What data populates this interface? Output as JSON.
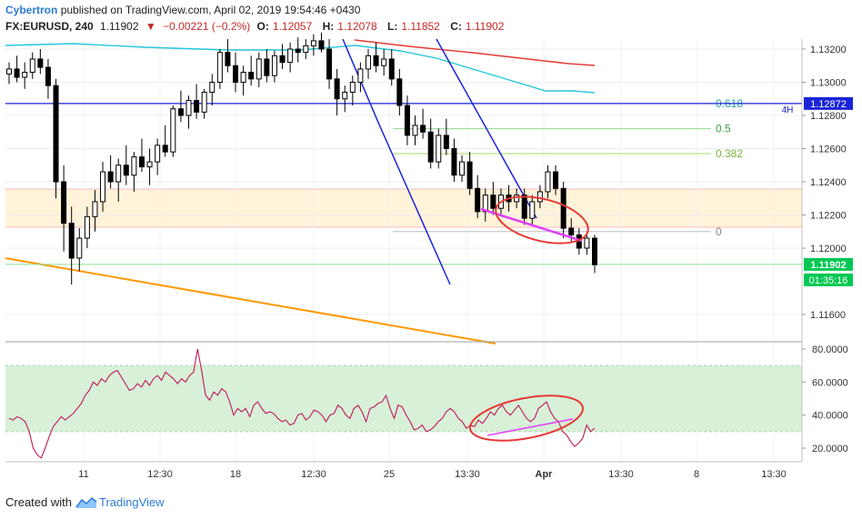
{
  "header": {
    "author": "Cybertron",
    "published_text": "published on TradingView.com, April 02, 2019 19:54:46 +0430",
    "symbol": "FX:EURUSD, 240",
    "last": "1.11902",
    "change_arrow": "▼",
    "change": "−0.00221 (−0.2%)",
    "o_label": "O:",
    "o_value": "1.12057",
    "h_label": "H:",
    "h_value": "1.12078",
    "l_label": "L:",
    "l_value": "1.11852",
    "c_label": "C:",
    "c_value": "1.11902"
  },
  "footer": {
    "created_with": "Created with",
    "brand": "TradingView"
  },
  "colors": {
    "bull": "#ffffff",
    "bear": "#000000",
    "ma_red": "#e53935",
    "ma_cyan": "#26c6da",
    "trend_blue": "#1a24d8",
    "orange": "#ff9800",
    "magenta": "#e040fb",
    "circle": "#e53935",
    "zone": "#fff3d9",
    "rsi": "#c2185b",
    "rsi_band": "#d7f0d7",
    "green_price": "#00c853"
  },
  "chart_data": {
    "type": "candlestick",
    "price_axis": {
      "min": 1.1145,
      "max": 1.1328,
      "ticks": [
        "1.13200",
        "1.13000",
        "1.12800",
        "1.12600",
        "1.12400",
        "1.12200",
        "1.12000",
        "1.11600"
      ]
    },
    "time_axis": {
      "ticks": [
        "11",
        "12:30",
        "18",
        "12:30",
        "25",
        "13:30",
        "Apr",
        "13:30",
        "8",
        "13:30"
      ]
    },
    "current_price_label": "1.11902",
    "countdown_label": "01:35:16",
    "blue_line_label": "1.12872",
    "timeframe_label": "4H",
    "fib_levels": [
      {
        "label": "0.618",
        "price": 1.12872
      },
      {
        "label": "0.5",
        "price": 1.1272
      },
      {
        "label": "0.382",
        "price": 1.1257
      },
      {
        "label": "0",
        "price": 1.121
      }
    ],
    "candles": [
      [
        1.1305,
        1.1312,
        1.1299,
        1.1308
      ],
      [
        1.1308,
        1.1316,
        1.13,
        1.1303
      ],
      [
        1.1303,
        1.1312,
        1.1296,
        1.1306
      ],
      [
        1.1306,
        1.1318,
        1.1302,
        1.1314
      ],
      [
        1.1314,
        1.132,
        1.1305,
        1.1309
      ],
      [
        1.1309,
        1.1314,
        1.129,
        1.1298
      ],
      [
        1.1298,
        1.1302,
        1.123,
        1.124
      ],
      [
        1.124,
        1.125,
        1.1198,
        1.1215
      ],
      [
        1.1215,
        1.1225,
        1.1178,
        1.1194
      ],
      [
        1.1194,
        1.1212,
        1.1186,
        1.1206
      ],
      [
        1.1206,
        1.1225,
        1.12,
        1.1219
      ],
      [
        1.1219,
        1.1235,
        1.121,
        1.1228
      ],
      [
        1.1228,
        1.1252,
        1.1222,
        1.1246
      ],
      [
        1.1246,
        1.1256,
        1.1236,
        1.124
      ],
      [
        1.124,
        1.1254,
        1.1228,
        1.125
      ],
      [
        1.125,
        1.1262,
        1.1238,
        1.1244
      ],
      [
        1.1244,
        1.1258,
        1.1234,
        1.1255
      ],
      [
        1.1255,
        1.1266,
        1.1246,
        1.1249
      ],
      [
        1.1249,
        1.126,
        1.1238,
        1.1252
      ],
      [
        1.1252,
        1.1266,
        1.1244,
        1.1262
      ],
      [
        1.1262,
        1.1274,
        1.1255,
        1.1258
      ],
      [
        1.1258,
        1.1286,
        1.1255,
        1.1284
      ],
      [
        1.1284,
        1.1295,
        1.1276,
        1.128
      ],
      [
        1.128,
        1.1292,
        1.1272,
        1.1289
      ],
      [
        1.1289,
        1.1299,
        1.1278,
        1.1282
      ],
      [
        1.1282,
        1.1296,
        1.1278,
        1.1294
      ],
      [
        1.1294,
        1.1305,
        1.1286,
        1.13
      ],
      [
        1.13,
        1.132,
        1.1296,
        1.1318
      ],
      [
        1.1318,
        1.1326,
        1.1306,
        1.131
      ],
      [
        1.131,
        1.1318,
        1.1294,
        1.13
      ],
      [
        1.13,
        1.131,
        1.1292,
        1.1306
      ],
      [
        1.1306,
        1.1316,
        1.1298,
        1.1302
      ],
      [
        1.1302,
        1.1318,
        1.1297,
        1.1314
      ],
      [
        1.1314,
        1.132,
        1.13,
        1.1304
      ],
      [
        1.1304,
        1.1319,
        1.13,
        1.1316
      ],
      [
        1.1316,
        1.1323,
        1.1308,
        1.1312
      ],
      [
        1.1312,
        1.1324,
        1.1306,
        1.132
      ],
      [
        1.132,
        1.1327,
        1.1312,
        1.1318
      ],
      [
        1.1318,
        1.1326,
        1.1314,
        1.1322
      ],
      [
        1.1322,
        1.1329,
        1.1316,
        1.1325
      ],
      [
        1.1325,
        1.133,
        1.1318,
        1.132
      ],
      [
        1.132,
        1.1326,
        1.1296,
        1.1302
      ],
      [
        1.1302,
        1.1308,
        1.128,
        1.129
      ],
      [
        1.129,
        1.1298,
        1.1282,
        1.1294
      ],
      [
        1.1294,
        1.1304,
        1.1286,
        1.13
      ],
      [
        1.13,
        1.1312,
        1.1294,
        1.1308
      ],
      [
        1.1308,
        1.132,
        1.1302,
        1.1316
      ],
      [
        1.1316,
        1.1324,
        1.1306,
        1.131
      ],
      [
        1.131,
        1.132,
        1.1304,
        1.1314
      ],
      [
        1.1314,
        1.132,
        1.1298,
        1.1302
      ],
      [
        1.1302,
        1.1308,
        1.128,
        1.1286
      ],
      [
        1.1286,
        1.1292,
        1.1262,
        1.1268
      ],
      [
        1.1268,
        1.128,
        1.1262,
        1.1274
      ],
      [
        1.1274,
        1.1284,
        1.1266,
        1.127
      ],
      [
        1.127,
        1.1278,
        1.1248,
        1.1252
      ],
      [
        1.1252,
        1.1272,
        1.1248,
        1.1268
      ],
      [
        1.1268,
        1.1278,
        1.1256,
        1.126
      ],
      [
        1.126,
        1.1266,
        1.124,
        1.1244
      ],
      [
        1.1244,
        1.1256,
        1.124,
        1.1252
      ],
      [
        1.1252,
        1.1258,
        1.1232,
        1.1236
      ],
      [
        1.1236,
        1.1244,
        1.1218,
        1.1222
      ],
      [
        1.1222,
        1.1236,
        1.1216,
        1.1232
      ],
      [
        1.1232,
        1.124,
        1.122,
        1.1224
      ],
      [
        1.1224,
        1.1236,
        1.122,
        1.1232
      ],
      [
        1.1232,
        1.1238,
        1.1222,
        1.1228
      ],
      [
        1.1228,
        1.1236,
        1.1224,
        1.1232
      ],
      [
        1.1232,
        1.1236,
        1.1214,
        1.1218
      ],
      [
        1.1218,
        1.1232,
        1.1214,
        1.1228
      ],
      [
        1.1228,
        1.1238,
        1.1224,
        1.1234
      ],
      [
        1.1234,
        1.125,
        1.123,
        1.1246
      ],
      [
        1.1246,
        1.125,
        1.1232,
        1.1236
      ],
      [
        1.1236,
        1.124,
        1.1206,
        1.1212
      ],
      [
        1.1212,
        1.1218,
        1.1204,
        1.1208
      ],
      [
        1.1208,
        1.1212,
        1.1196,
        1.12
      ],
      [
        1.12,
        1.121,
        1.1196,
        1.1206
      ],
      [
        1.1206,
        1.1208,
        1.1185,
        1.119
      ]
    ],
    "rsi_axis": {
      "min": 10,
      "max": 85,
      "ticks": [
        "80.0000",
        "60.0000",
        "40.0000",
        "20.0000"
      ]
    },
    "rsi_values": [
      38,
      37,
      39,
      38,
      36,
      30,
      20,
      16,
      14,
      20,
      27,
      33,
      36,
      39,
      37,
      39,
      41,
      44,
      47,
      52,
      55,
      60,
      58,
      62,
      60,
      64,
      66,
      67,
      63,
      59,
      55,
      56,
      59,
      57,
      61,
      58,
      62,
      64,
      61,
      66,
      64,
      62,
      59,
      62,
      60,
      64,
      66,
      80,
      67,
      52,
      49,
      54,
      52,
      56,
      54,
      48,
      40,
      44,
      42,
      44,
      39,
      46,
      48,
      44,
      41,
      42,
      41,
      38,
      36,
      37,
      34,
      35,
      40,
      41,
      37,
      39,
      43,
      42,
      40,
      36,
      40,
      41,
      46,
      44,
      40,
      38,
      44,
      46,
      42,
      36,
      44,
      45,
      47,
      48,
      52,
      44,
      38,
      46,
      45,
      40,
      36,
      31,
      32,
      34,
      30,
      31,
      33,
      36,
      38,
      42,
      44,
      42,
      38,
      36,
      32,
      34,
      33,
      37,
      35,
      38,
      42,
      40,
      44,
      46,
      42,
      40,
      43,
      46,
      42,
      38,
      36,
      38,
      44,
      46,
      48,
      42,
      38,
      36,
      30,
      28,
      24,
      21,
      23,
      26,
      34,
      30,
      32
    ]
  }
}
